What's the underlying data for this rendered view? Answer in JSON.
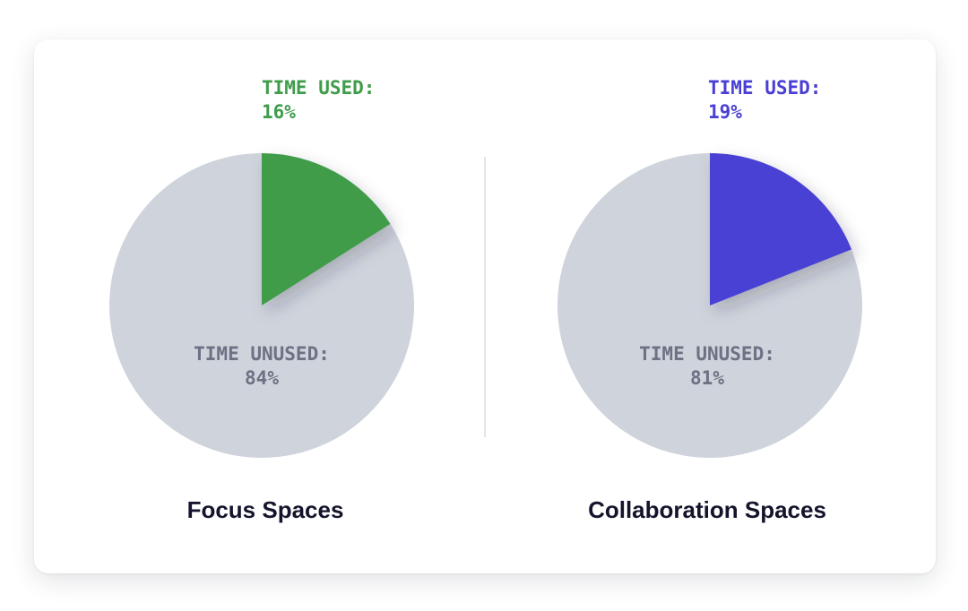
{
  "colors": {
    "unused": "#cfd3dc",
    "unused_text": "#6d7183",
    "title_text": "#14152c"
  },
  "chart_data": [
    {
      "type": "pie",
      "title": "Focus Spaces",
      "slices": [
        {
          "label": "TIME USED:",
          "value": 16,
          "value_text": "16%",
          "color": "#3f9c4a"
        },
        {
          "label": "TIME UNUSED:",
          "value": 84,
          "value_text": "84%",
          "color": "#cfd3dc"
        }
      ]
    },
    {
      "type": "pie",
      "title": "Collaboration Spaces",
      "slices": [
        {
          "label": "TIME USED:",
          "value": 19,
          "value_text": "19%",
          "color": "#4a3fd4"
        },
        {
          "label": "TIME UNUSED:",
          "value": 81,
          "value_text": "81%",
          "color": "#cfd3dc"
        }
      ]
    }
  ]
}
